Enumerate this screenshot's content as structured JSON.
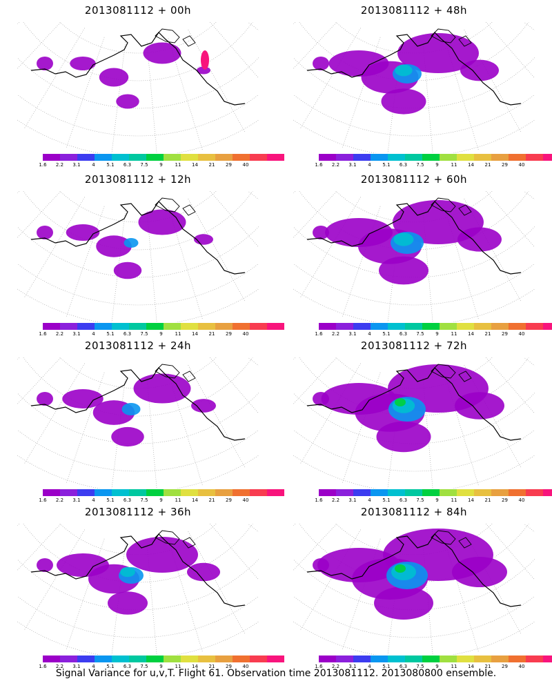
{
  "panels": [
    {
      "title": "2013081112 + 00h",
      "lead": "00h"
    },
    {
      "title": "2013081112 + 48h",
      "lead": "48h"
    },
    {
      "title": "2013081112 + 12h",
      "lead": "12h"
    },
    {
      "title": "2013081112 + 60h",
      "lead": "60h"
    },
    {
      "title": "2013081112 + 24h",
      "lead": "24h"
    },
    {
      "title": "2013081112 + 72h",
      "lead": "72h"
    },
    {
      "title": "2013081112 + 36h",
      "lead": "36h"
    },
    {
      "title": "2013081112 + 84h",
      "lead": "84h"
    }
  ],
  "colorbar": {
    "colors": [
      "#9b00c8",
      "#8b20dc",
      "#3c3cf0",
      "#0a96f0",
      "#00c0d0",
      "#00c8a0",
      "#00d040",
      "#a0e040",
      "#e0e040",
      "#e8c040",
      "#e8a040",
      "#f07030",
      "#f83c50",
      "#f8147c"
    ],
    "labels": [
      "1.6",
      "2.2",
      "3.1",
      "4",
      "5.1",
      "6.3",
      "7.5",
      "9",
      "11",
      "14",
      "21",
      "29",
      "40"
    ]
  },
  "caption": "Signal Variance for u,v,T. Flight 61. Observation time 2013081112. 2013080800 ensemble."
}
